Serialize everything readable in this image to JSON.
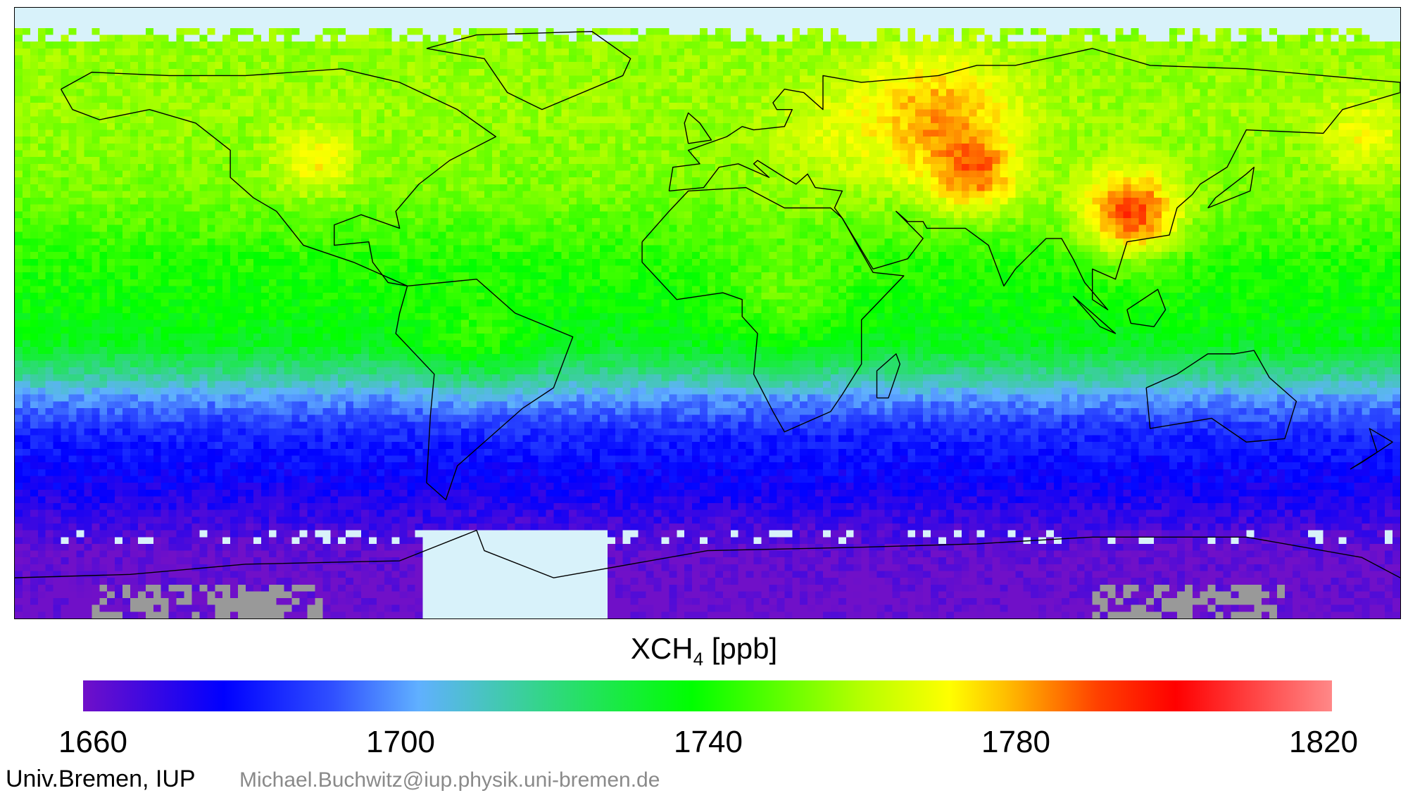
{
  "colorbar": {
    "title_main": "XCH",
    "title_sub": "4",
    "title_unit": " [ppb]",
    "min": 1660,
    "max": 1820,
    "ticks": [
      "1660",
      "1700",
      "1740",
      "1780",
      "1820"
    ],
    "stops": [
      {
        "v": 1660,
        "c": "#7010c8"
      },
      {
        "v": 1678,
        "c": "#0000ff"
      },
      {
        "v": 1692,
        "c": "#3050ff"
      },
      {
        "v": 1703,
        "c": "#60b0ff"
      },
      {
        "v": 1720,
        "c": "#30d880"
      },
      {
        "v": 1738,
        "c": "#00ff00"
      },
      {
        "v": 1760,
        "c": "#b8ff00"
      },
      {
        "v": 1771,
        "c": "#ffff00"
      },
      {
        "v": 1778,
        "c": "#ffc000"
      },
      {
        "v": 1790,
        "c": "#ff4000"
      },
      {
        "v": 1800,
        "c": "#ff0000"
      },
      {
        "v": 1820,
        "c": "#ff8888"
      }
    ]
  },
  "colors": {
    "no_data": "#d8f2fa",
    "invalid": "#999999",
    "coastline": "#000000"
  },
  "footer": {
    "organization": "Univ.Bremen, IUP",
    "email": "Michael.Buchwitz@iup.physik.uni-bremen.de"
  }
}
